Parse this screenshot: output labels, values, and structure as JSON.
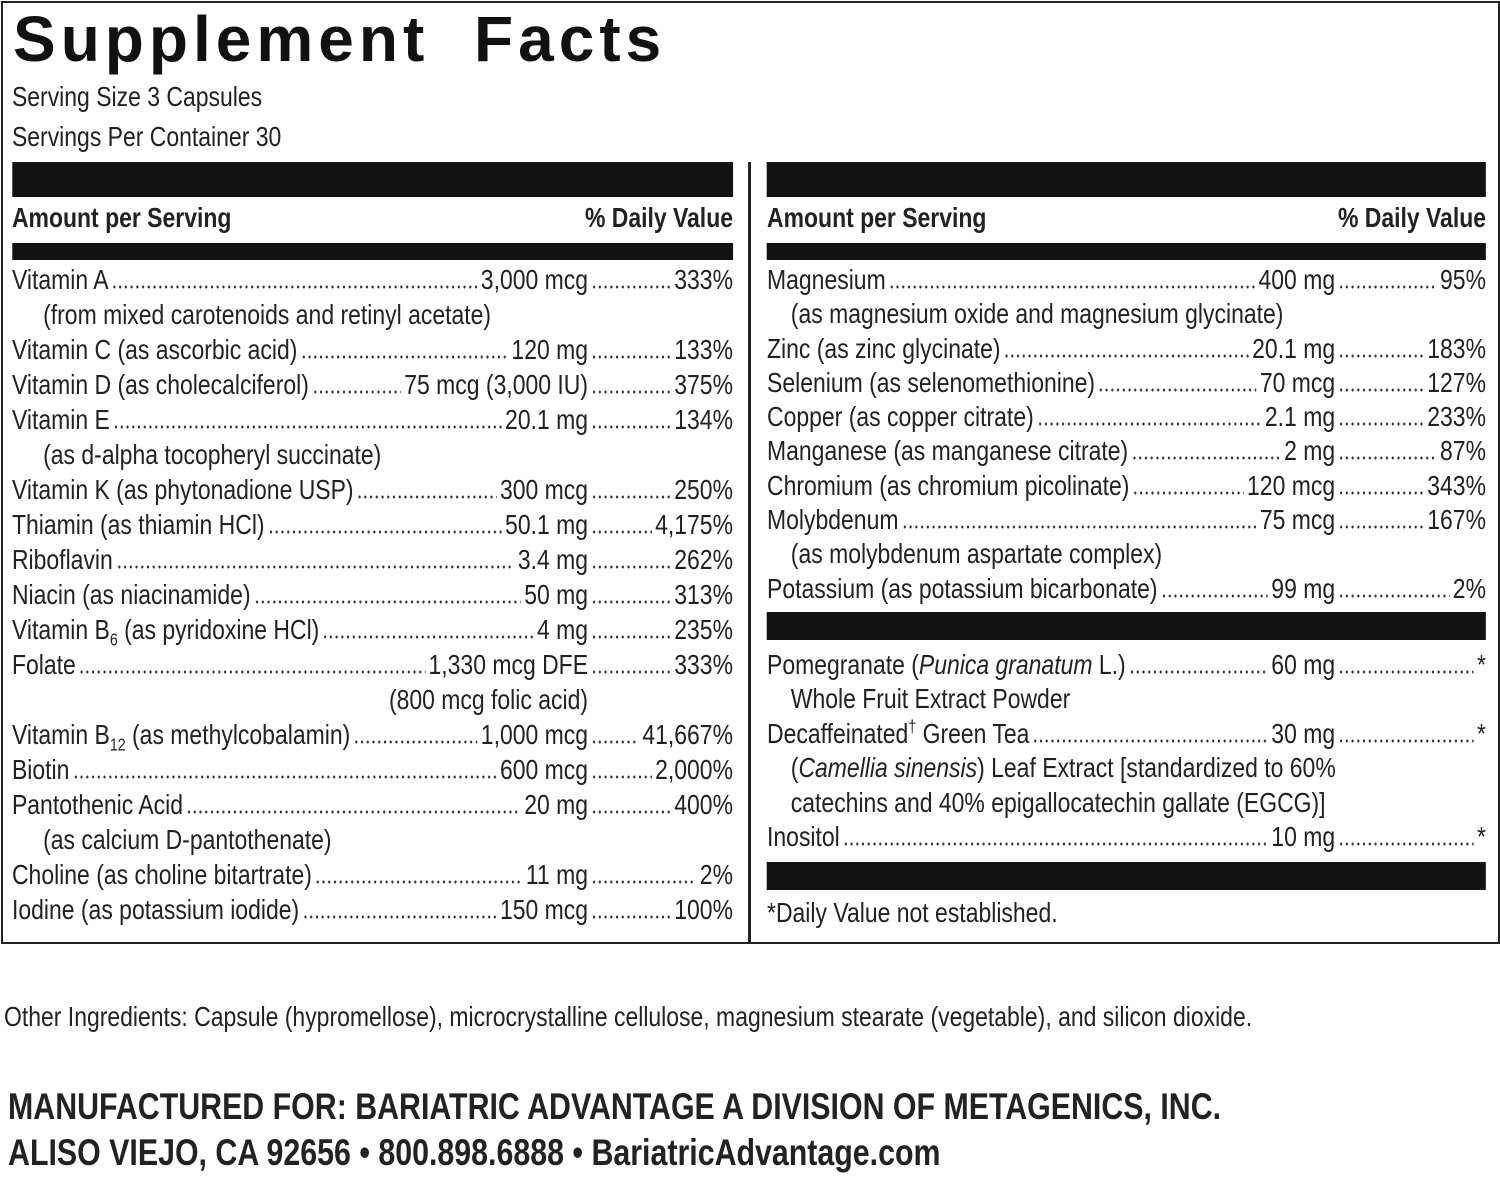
{
  "title": "Supplement Facts",
  "serving_size": "Serving Size 3 Capsules",
  "servings_per_container": "Servings Per Container 30",
  "left": {
    "header": {
      "amount": "Amount per Serving",
      "dv": "% Daily Value"
    },
    "rows": [
      {
        "name": [
          "Vitamin A"
        ],
        "amount": "3,000 mcg",
        "dv": "333%",
        "notes": [
          [
            "(from mixed carotenoids and retinyl acetate)"
          ]
        ]
      },
      {
        "name": [
          "Vitamin C (as ascorbic acid)"
        ],
        "amount": "120 mg",
        "dv": "133%"
      },
      {
        "name": [
          "Vitamin D (as cholecalciferol)"
        ],
        "amount": "75 mcg (3,000 IU)",
        "dv": "375%"
      },
      {
        "name": [
          "Vitamin E"
        ],
        "amount": "20.1 mg",
        "dv": "134%",
        "notes": [
          [
            "(as d-alpha tocopheryl succinate)"
          ]
        ]
      },
      {
        "name": [
          "Vitamin K (as phytonadione USP)"
        ],
        "amount": "300 mcg",
        "dv": "250%"
      },
      {
        "name": [
          "Thiamin (as thiamin HCl)"
        ],
        "amount": "50.1 mg",
        "dv": "4,175%"
      },
      {
        "name": [
          "Riboflavin"
        ],
        "amount": "3.4 mg",
        "dv": "262%"
      },
      {
        "name": [
          "Niacin (as niacinamide)"
        ],
        "amount": "50 mg",
        "dv": "313%"
      },
      {
        "name": [
          "Vitamin B",
          {
            "text": "6",
            "style": "sub"
          },
          " (as pyridoxine HCl)"
        ],
        "amount": "4 mg",
        "dv": "235%"
      },
      {
        "name": [
          "Folate"
        ],
        "amount": "1,330 mcg DFE",
        "dv": "333%",
        "notes": [
          [
            "(800 mcg folic acid)"
          ]
        ],
        "note_align": "amount"
      },
      {
        "name": [
          "Vitamin B",
          {
            "text": "12",
            "style": "sub"
          },
          " (as methylcobalamin)"
        ],
        "amount": "1,000 mcg",
        "dv": "41,667%"
      },
      {
        "name": [
          "Biotin"
        ],
        "amount": "600 mcg",
        "dv": "2,000%"
      },
      {
        "name": [
          "Pantothenic Acid"
        ],
        "amount": "20 mg",
        "dv": "400%",
        "notes": [
          [
            "(as calcium D-pantothenate)"
          ]
        ]
      },
      {
        "name": [
          "Choline (as choline bitartrate)"
        ],
        "amount": "11 mg",
        "dv": "2%"
      },
      {
        "name": [
          "Iodine (as potassium iodide)"
        ],
        "amount": "150 mcg",
        "dv": "100%"
      }
    ]
  },
  "right": {
    "header": {
      "amount": "Amount per Serving",
      "dv": "% Daily Value"
    },
    "rows": [
      {
        "name": [
          "Magnesium"
        ],
        "amount": "400 mg",
        "dv": "95%",
        "notes": [
          [
            "(as magnesium oxide and magnesium glycinate)"
          ]
        ]
      },
      {
        "name": [
          "Zinc (as zinc glycinate)"
        ],
        "amount": "20.1 mg",
        "dv": "183%"
      },
      {
        "name": [
          "Selenium (as selenomethionine)"
        ],
        "amount": "70 mcg",
        "dv": "127%"
      },
      {
        "name": [
          "Copper (as copper citrate)"
        ],
        "amount": "2.1 mg",
        "dv": "233%"
      },
      {
        "name": [
          "Manganese (as manganese citrate)"
        ],
        "amount": "2 mg",
        "dv": "87%"
      },
      {
        "name": [
          "Chromium (as chromium picolinate)"
        ],
        "amount": "120 mcg",
        "dv": "343%"
      },
      {
        "name": [
          "Molybdenum"
        ],
        "amount": "75 mcg",
        "dv": "167%",
        "notes": [
          [
            "(as molybdenum aspartate complex)"
          ]
        ]
      },
      {
        "name": [
          "Potassium (as potassium bicarbonate)"
        ],
        "amount": "99 mg",
        "dv": "2%"
      }
    ],
    "other_rows": [
      {
        "name": [
          "Pomegranate (",
          {
            "text": "Punica granatum",
            "style": "italic"
          },
          " L.)"
        ],
        "amount": "60 mg",
        "dv": "*",
        "notes": [
          [
            "Whole Fruit Extract Powder"
          ]
        ]
      },
      {
        "name": [
          "Decaffeinated",
          {
            "text": "†",
            "style": "sup"
          },
          " Green Tea"
        ],
        "amount": "30 mg",
        "dv": "*",
        "notes": [
          [
            "(",
            {
              "text": "Camellia sinensis",
              "style": "italic"
            },
            ") Leaf Extract [standardized to 60%"
          ],
          [
            "catechins and 40% epigallocatechin gallate (EGCG)]"
          ]
        ]
      },
      {
        "name": [
          "Inositol"
        ],
        "amount": "10 mg",
        "dv": "*"
      }
    ],
    "footnote": "*Daily Value not established."
  },
  "other_ingredients": "Other Ingredients: Capsule (hypromellose), microcrystalline cellulose, magnesium stearate (vegetable), and silicon dioxide.",
  "manufacturer": [
    "MANUFACTURED FOR: BARIATRIC ADVANTAGE A DIVISION OF METAGENICS, INC.",
    "ALISO VIEJO, CA 92656 • 800.898.6888 • BariatricAdvantage.com"
  ]
}
